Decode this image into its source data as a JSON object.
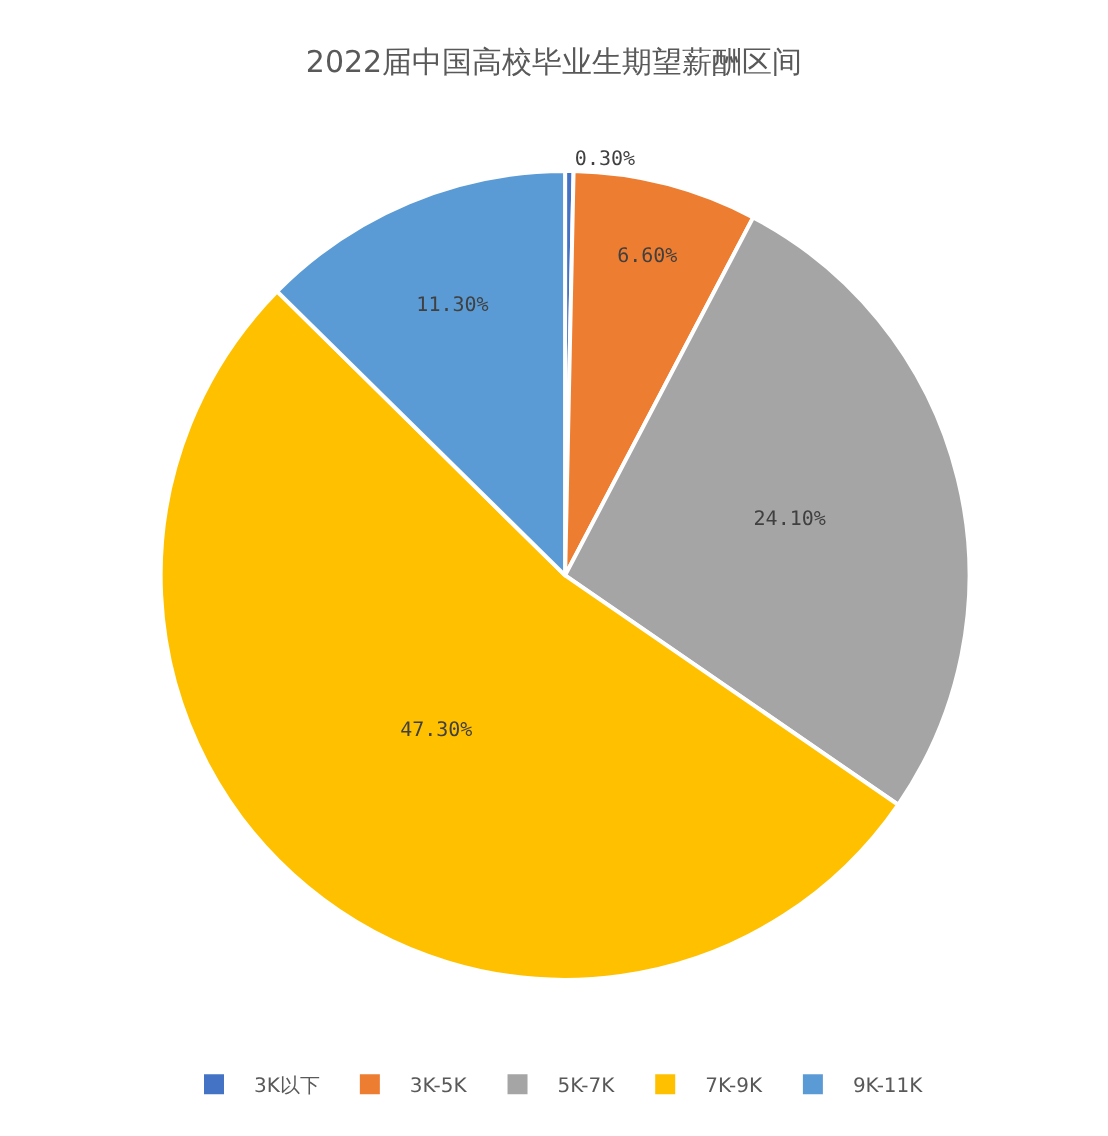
{
  "chart_data": {
    "type": "pie",
    "title": "2022届中国高校毕业生期望薪酬区间",
    "categories": [
      "3K以下",
      "3K-5K",
      "5K-7K",
      "7K-9K",
      "9K-11K"
    ],
    "values": [
      0.3,
      6.6,
      24.1,
      47.3,
      11.3
    ],
    "value_labels": [
      "0.30%",
      "6.60%",
      "24.10%",
      "47.30%",
      "11.30%"
    ],
    "colors": [
      "#4472c4",
      "#ed7d31",
      "#a5a5a5",
      "#ffc000",
      "#5b9bd5"
    ],
    "legend": "bottom"
  }
}
